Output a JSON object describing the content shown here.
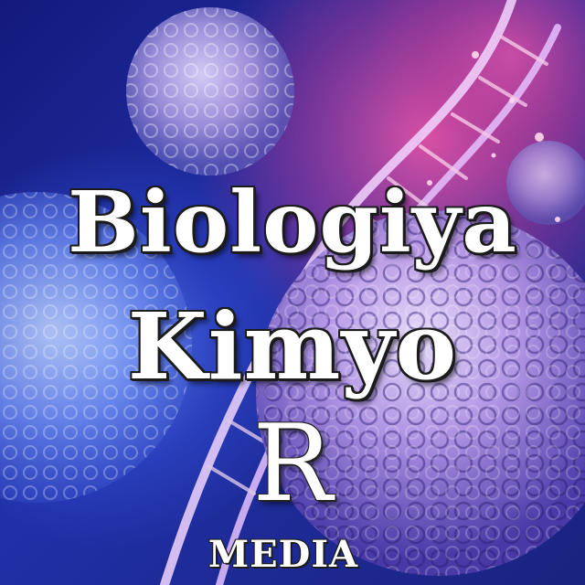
{
  "logo": {
    "title_line1": "Biologiya",
    "title_line2": "Kimyo",
    "monogram": "R",
    "brand": "MEDIA"
  },
  "colors": {
    "background_deep": "#13186e",
    "background_blue": "#2a3ad0",
    "accent_magenta": "#d2408f",
    "cell_lavender": "#b6a4e6",
    "text": "#ffffff",
    "outline": "#1b1b1b"
  }
}
